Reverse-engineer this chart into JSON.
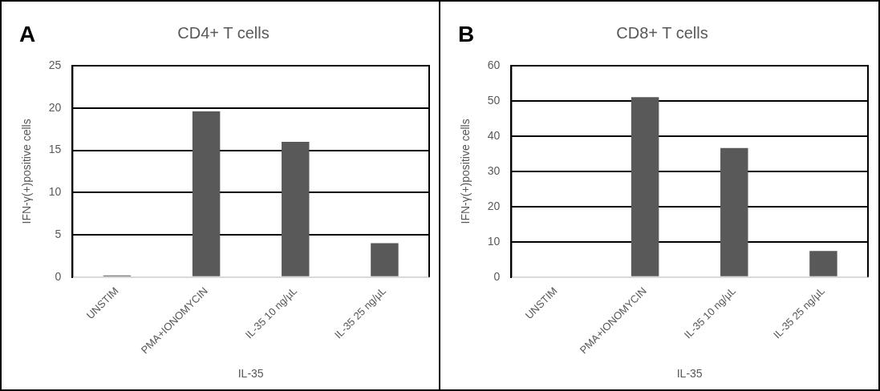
{
  "chart_data": [
    {
      "type": "bar",
      "title": "CD4+ T cells",
      "xlabel": "IL-35",
      "ylabel": "IFN-γ(+)positive cells",
      "annotations": [
        "A"
      ],
      "categories": [
        "UNSTIM",
        "PMA+IONOMYCIN",
        "IL-35 10 ng/µL",
        "IL-35 25 ng/µL"
      ],
      "values": [
        0.2,
        19.6,
        16.0,
        4.0
      ],
      "color": "#595959",
      "ylim": [
        0,
        25
      ],
      "yticks": [
        0,
        5,
        10,
        15,
        20,
        25
      ],
      "grid": "y",
      "legend": false
    },
    {
      "type": "bar",
      "title": "CD8+ T cells",
      "xlabel": "IL-35",
      "ylabel": "IFN-γ(+)positive cells",
      "annotations": [
        "B"
      ],
      "categories": [
        "UNSTIM",
        "PMA+IONOMYCIN",
        "IL-35 10 ng/µL",
        "IL-35 25 ng/µL"
      ],
      "values": [
        0,
        51.1,
        36.6,
        7.4
      ],
      "color": "#595959",
      "ylim": [
        0,
        60
      ],
      "yticks": [
        0,
        10,
        20,
        30,
        40,
        50,
        60
      ],
      "grid": "y",
      "legend": false
    }
  ]
}
